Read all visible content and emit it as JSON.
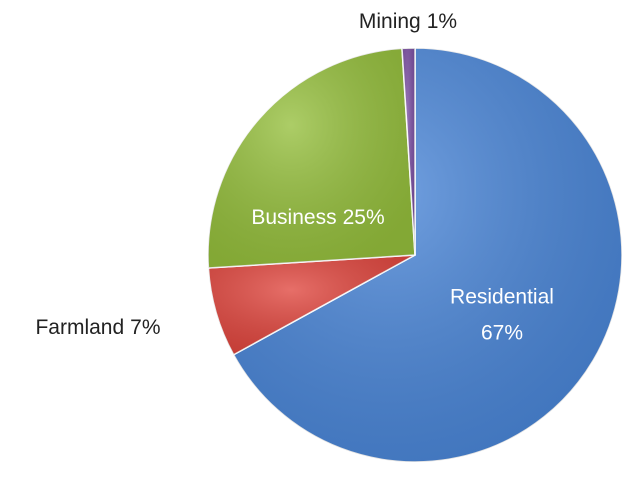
{
  "chart_data": {
    "type": "pie",
    "categories": [
      "Residential",
      "Farmland",
      "Business",
      "Mining"
    ],
    "values": [
      67,
      7,
      25,
      1
    ],
    "value_labels": [
      "67%",
      "7%",
      "25%",
      "1%"
    ],
    "colors": [
      "#4a86d8",
      "#e0463e",
      "#95bf3c",
      "#7b4fa3"
    ]
  }
}
